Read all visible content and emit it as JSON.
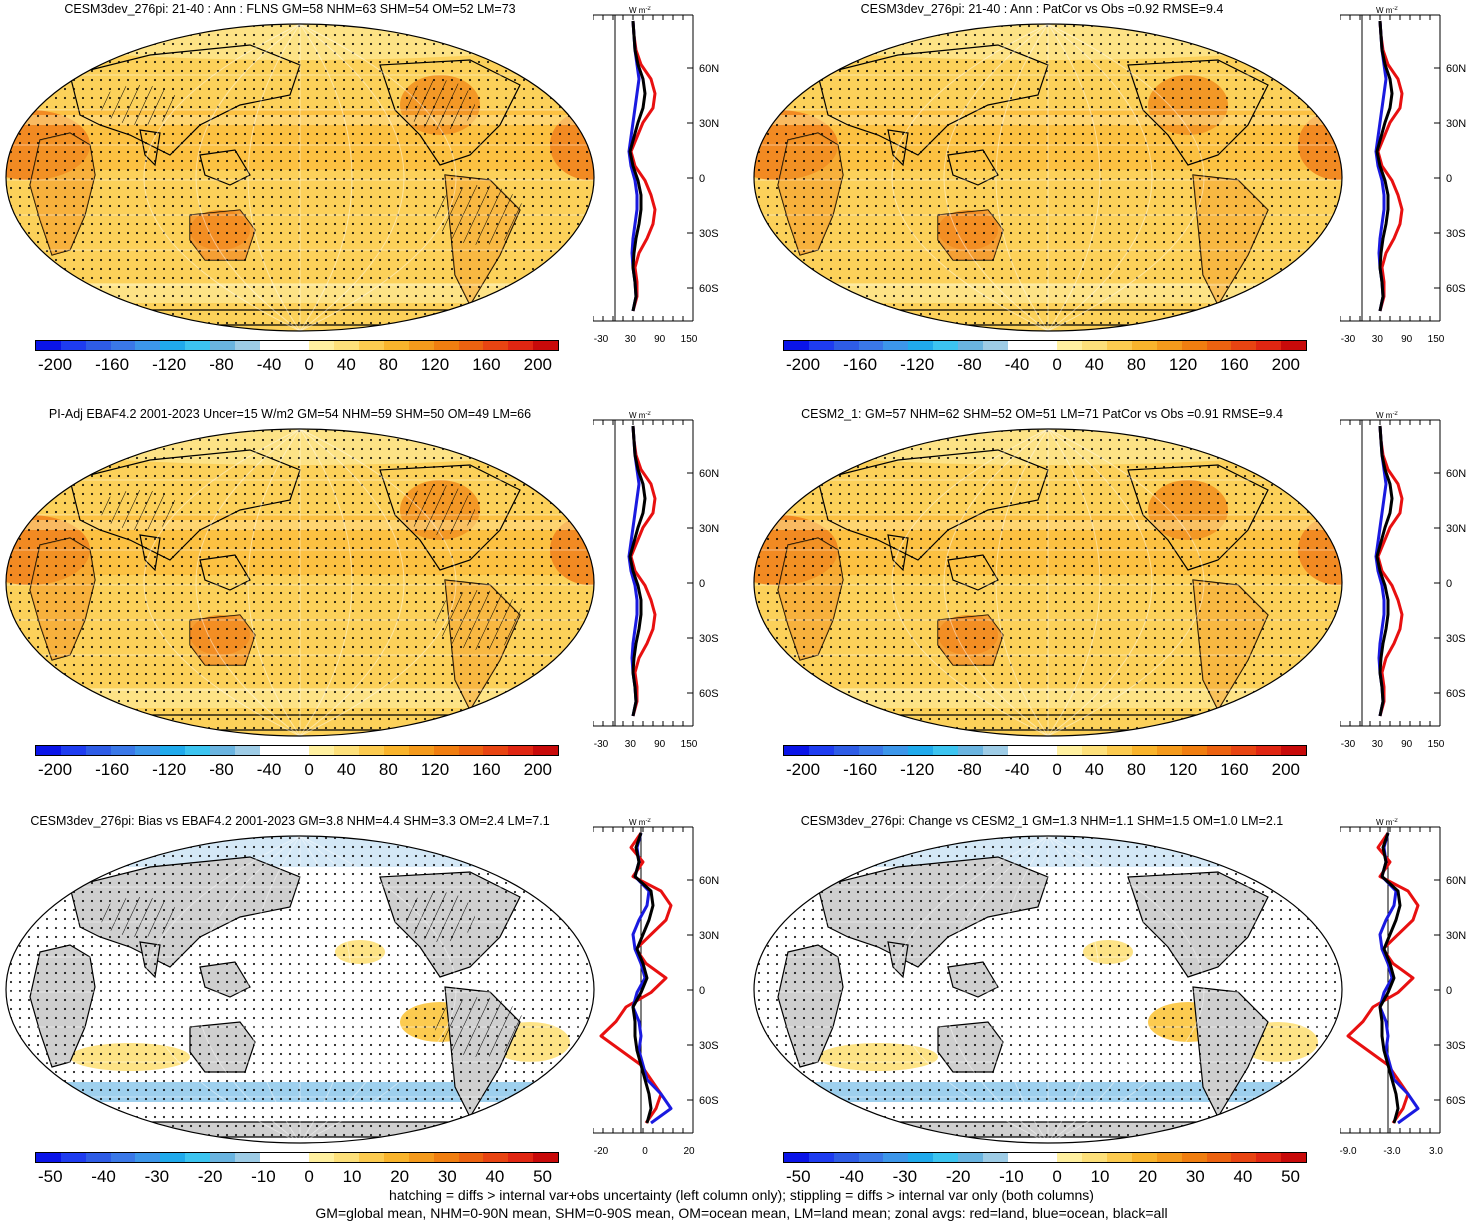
{
  "panels": [
    {
      "title": "CESM3dev_276pi: 21-40 : Ann : FLNS GM=58 NHM=63 SHM=54 OM=52 LM=73",
      "scale": "full",
      "zonal_ticks": [
        "-30",
        "30",
        "90",
        "150"
      ],
      "hatch": true,
      "grey": false
    },
    {
      "title": "CESM3dev_276pi: 21-40 : Ann : PatCor vs Obs =0.92 RMSE=9.4",
      "scale": "full",
      "zonal_ticks": [
        "-30",
        "30",
        "90",
        "150"
      ],
      "hatch": false,
      "grey": false
    },
    {
      "title": "PI-Adj EBAF4.2 2001-2023 Uncer=15 W/m2 GM=54 NHM=59 SHM=50 OM=49 LM=66",
      "scale": "full",
      "zonal_ticks": [
        "-30",
        "30",
        "90",
        "150"
      ],
      "hatch": true,
      "grey": false
    },
    {
      "title": "CESM2_1: GM=57 NHM=62 SHM=52 OM=51 LM=71 PatCor vs Obs =0.91 RMSE=9.4",
      "scale": "full",
      "zonal_ticks": [
        "-30",
        "30",
        "90",
        "150"
      ],
      "hatch": false,
      "grey": false
    },
    {
      "title": "CESM3dev_276pi: Bias vs EBAF4.2 2001-2023 GM=3.8 NHM=4.4 SHM=3.3 OM=2.4 LM=7.1",
      "scale": "diff",
      "zonal_ticks": [
        "-20",
        "0",
        "20"
      ],
      "hatch": true,
      "grey": true
    },
    {
      "title": "CESM3dev_276pi: Change vs CESM2_1 GM=1.3 NHM=1.1 SHM=1.5 OM=1.0 LM=2.1",
      "scale": "diff",
      "zonal_ticks": [
        "-9.0",
        "-3.0",
        "3.0"
      ],
      "hatch": false,
      "grey": true
    }
  ],
  "colorbar_full": [
    "-200",
    "-160",
    "-120",
    "-80",
    "-40",
    "0",
    "40",
    "80",
    "120",
    "160",
    "200"
  ],
  "colorbar_diff": [
    "-50",
    "-40",
    "-30",
    "-20",
    "-10",
    "0",
    "10",
    "20",
    "30",
    "40",
    "50"
  ],
  "colorbar_colors": [
    "#0a14e8",
    "#1e3cf0",
    "#2e5ce6",
    "#3a78e8",
    "#3c96ea",
    "#20aaec",
    "#3cc4f0",
    "#6ab4e0",
    "#9ecce6",
    "#ffffff",
    "#ffffff",
    "#fff0a0",
    "#fde07a",
    "#fccb50",
    "#f9b42c",
    "#f49a1c",
    "#f07e10",
    "#ec6210",
    "#e84412",
    "#e02612",
    "#c80a0a"
  ],
  "zonal_unit": "W m",
  "zonal_unit_sup": "-2",
  "lat_labels": [
    "60N",
    "30N",
    "0",
    "30S",
    "60S"
  ],
  "footer_line1": "hatching = diffs > internal var+obs uncertainty (left column only); stippling = diffs > internal var only (both columns)",
  "footer_line2": "GM=global mean, NHM=0-90N mean, SHM=0-90S mean, OM=ocean mean, LM=land mean; zonal avgs: red=land, blue=ocean, black=all",
  "zonal_series_colors": {
    "land": "#e81010",
    "ocean": "#1a1ae0",
    "all": "#000000"
  }
}
